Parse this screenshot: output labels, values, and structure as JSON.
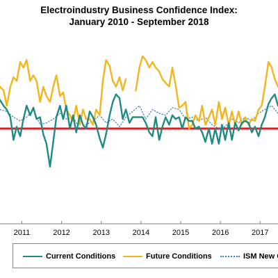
{
  "title_lines": [
    "Electroindustry Business Confidence Index:",
    "January 2010 - September 2018"
  ],
  "chart_data": {
    "type": "line",
    "title": "Electroindustry Business Confidence Index: January 2010 - September 2018",
    "xlabel": "",
    "ylabel": "",
    "x_ticks": [
      "2011",
      "2012",
      "2013",
      "2014",
      "2015",
      "2016",
      "2017"
    ],
    "x_range": [
      2010.45,
      2017.45
    ],
    "ylim": [
      0,
      100
    ],
    "reference_line": {
      "value": 50,
      "color": "#e8191f"
    },
    "grid": false,
    "legend_position": "bottom",
    "series": [
      {
        "name": "Current Conditions",
        "color": "#1e8a82",
        "style": "solid",
        "x": [
          2010.45,
          2010.54,
          2010.62,
          2010.71,
          2010.79,
          2010.87,
          2010.96,
          2011.04,
          2011.12,
          2011.21,
          2011.29,
          2011.37,
          2011.46,
          2011.54,
          2011.62,
          2011.71,
          2011.79,
          2011.87,
          2011.96,
          2012.04,
          2012.12,
          2012.21,
          2012.29,
          2012.37,
          2012.46,
          2012.54,
          2012.62,
          2012.71,
          2012.79,
          2012.87,
          2012.96,
          2013.04,
          2013.12,
          2013.21,
          2013.29,
          2013.37,
          2013.46,
          2013.54,
          2013.62,
          2013.71,
          2013.79,
          2013.87,
          2013.96,
          2014.04,
          2014.12,
          2014.21,
          2014.29,
          2014.37,
          2014.46,
          2014.54,
          2014.62,
          2014.71,
          2014.79,
          2014.87,
          2014.96,
          2015.04,
          2015.12,
          2015.21,
          2015.29,
          2015.37,
          2015.46,
          2015.54,
          2015.62,
          2015.71,
          2015.79,
          2015.87,
          2015.96,
          2016.04,
          2016.12,
          2016.21,
          2016.29,
          2016.37,
          2016.46,
          2016.54,
          2016.62,
          2016.71,
          2016.79,
          2016.87,
          2016.96,
          2017.04,
          2017.12,
          2017.21,
          2017.29,
          2017.37,
          2017.45
        ],
        "values": [
          65,
          62,
          60,
          56,
          44,
          51,
          46,
          55,
          62,
          57,
          61,
          55,
          56,
          47,
          42,
          30,
          43,
          56,
          62,
          55,
          62,
          50,
          57,
          48,
          57,
          52,
          50,
          59,
          56,
          52,
          45,
          40,
          47,
          57,
          64,
          68,
          66,
          55,
          60,
          53,
          56,
          56,
          56,
          56,
          53,
          48,
          46,
          56,
          44,
          51,
          56,
          52,
          57,
          55,
          56,
          50,
          56,
          54,
          54,
          50,
          51,
          48,
          43,
          50,
          42,
          50,
          42,
          52,
          44,
          53,
          44,
          53,
          49,
          53,
          54,
          53,
          48,
          51,
          46,
          52,
          56,
          63,
          66,
          68,
          62
        ]
      },
      {
        "name": "Future Conditions",
        "color": "#f2b51c",
        "style": "solid",
        "x": [
          2010.45,
          2010.54,
          2010.62,
          2010.71,
          2010.79,
          2010.87,
          2010.96,
          2011.04,
          2011.12,
          2011.21,
          2011.29,
          2011.37,
          2011.46,
          2011.54,
          2011.62,
          2011.71,
          2011.79,
          2011.87,
          2011.96,
          2012.04,
          2012.12,
          2012.21,
          2012.29,
          2012.37,
          2012.46,
          2012.54,
          2012.62,
          2012.71,
          2012.79,
          2012.87,
          2012.96,
          2013.04,
          2013.12,
          2013.21,
          2013.29,
          2013.37,
          2013.46,
          2013.54,
          2013.62,
          2013.71,
          null,
          2013.87,
          2013.96,
          2014.04,
          2014.12,
          2014.21,
          2014.29,
          2014.37,
          2014.46,
          2014.54,
          2014.62,
          2014.71,
          2014.79,
          2014.87,
          2014.96,
          2015.04,
          2015.12,
          2015.21,
          2015.29,
          2015.37,
          2015.46,
          2015.54,
          2015.62,
          2015.71,
          2015.79,
          2015.87,
          2015.96,
          2016.04,
          2016.12,
          2016.21,
          2016.29,
          2016.37,
          2016.46,
          2016.54,
          2016.62,
          2016.71,
          2016.79,
          2016.87,
          2016.96,
          2017.04,
          2017.12,
          2017.21,
          2017.29,
          2017.37,
          2017.45
        ],
        "values": [
          72,
          70,
          62,
          72,
          77,
          75,
          85,
          82,
          86,
          75,
          78,
          75,
          64,
          72,
          67,
          64,
          72,
          78,
          67,
          69,
          60,
          57,
          54,
          62,
          52,
          60,
          55,
          55,
          52,
          60,
          57,
          75,
          86,
          83,
          75,
          72,
          77,
          70,
          76,
          null,
          null,
          70,
          82,
          88,
          86,
          82,
          85,
          82,
          80,
          76,
          74,
          72,
          82,
          73,
          61,
          62,
          64,
          50,
          52,
          57,
          54,
          62,
          52,
          56,
          60,
          52,
          64,
          55,
          61,
          52,
          59,
          52,
          59,
          52,
          56,
          52,
          55,
          54,
          60,
          62,
          72,
          85,
          82,
          76,
          72
        ]
      },
      {
        "name": "ISM New O",
        "color": "#3a7fc1",
        "style": "dotted",
        "x": [
          2010.45,
          2010.62,
          2010.79,
          2010.96,
          2011.12,
          2011.29,
          2011.46,
          2011.62,
          2011.79,
          2011.96,
          2012.12,
          2012.29,
          2012.46,
          2012.62,
          2012.79,
          2012.96,
          2013.12,
          2013.29,
          2013.46,
          2013.62,
          2013.79,
          2013.96,
          2014.12,
          2014.29,
          2014.46,
          2014.62,
          2014.79,
          2014.96,
          2015.12,
          2015.29,
          2015.46,
          2015.62,
          2015.79,
          2015.96,
          2016.12,
          2016.29,
          2016.46,
          2016.62,
          2016.79,
          2016.96,
          2017.12,
          2017.29,
          2017.45
        ],
        "values": [
          60,
          59,
          56,
          54,
          56,
          60,
          52,
          53,
          55,
          58,
          55,
          56,
          50,
          52,
          54,
          57,
          53,
          55,
          51,
          56,
          59,
          62,
          55,
          60,
          58,
          57,
          61,
          60,
          55,
          56,
          54,
          56,
          52,
          50,
          51,
          55,
          53,
          56,
          54,
          58,
          60,
          62,
          58
        ]
      }
    ]
  }
}
